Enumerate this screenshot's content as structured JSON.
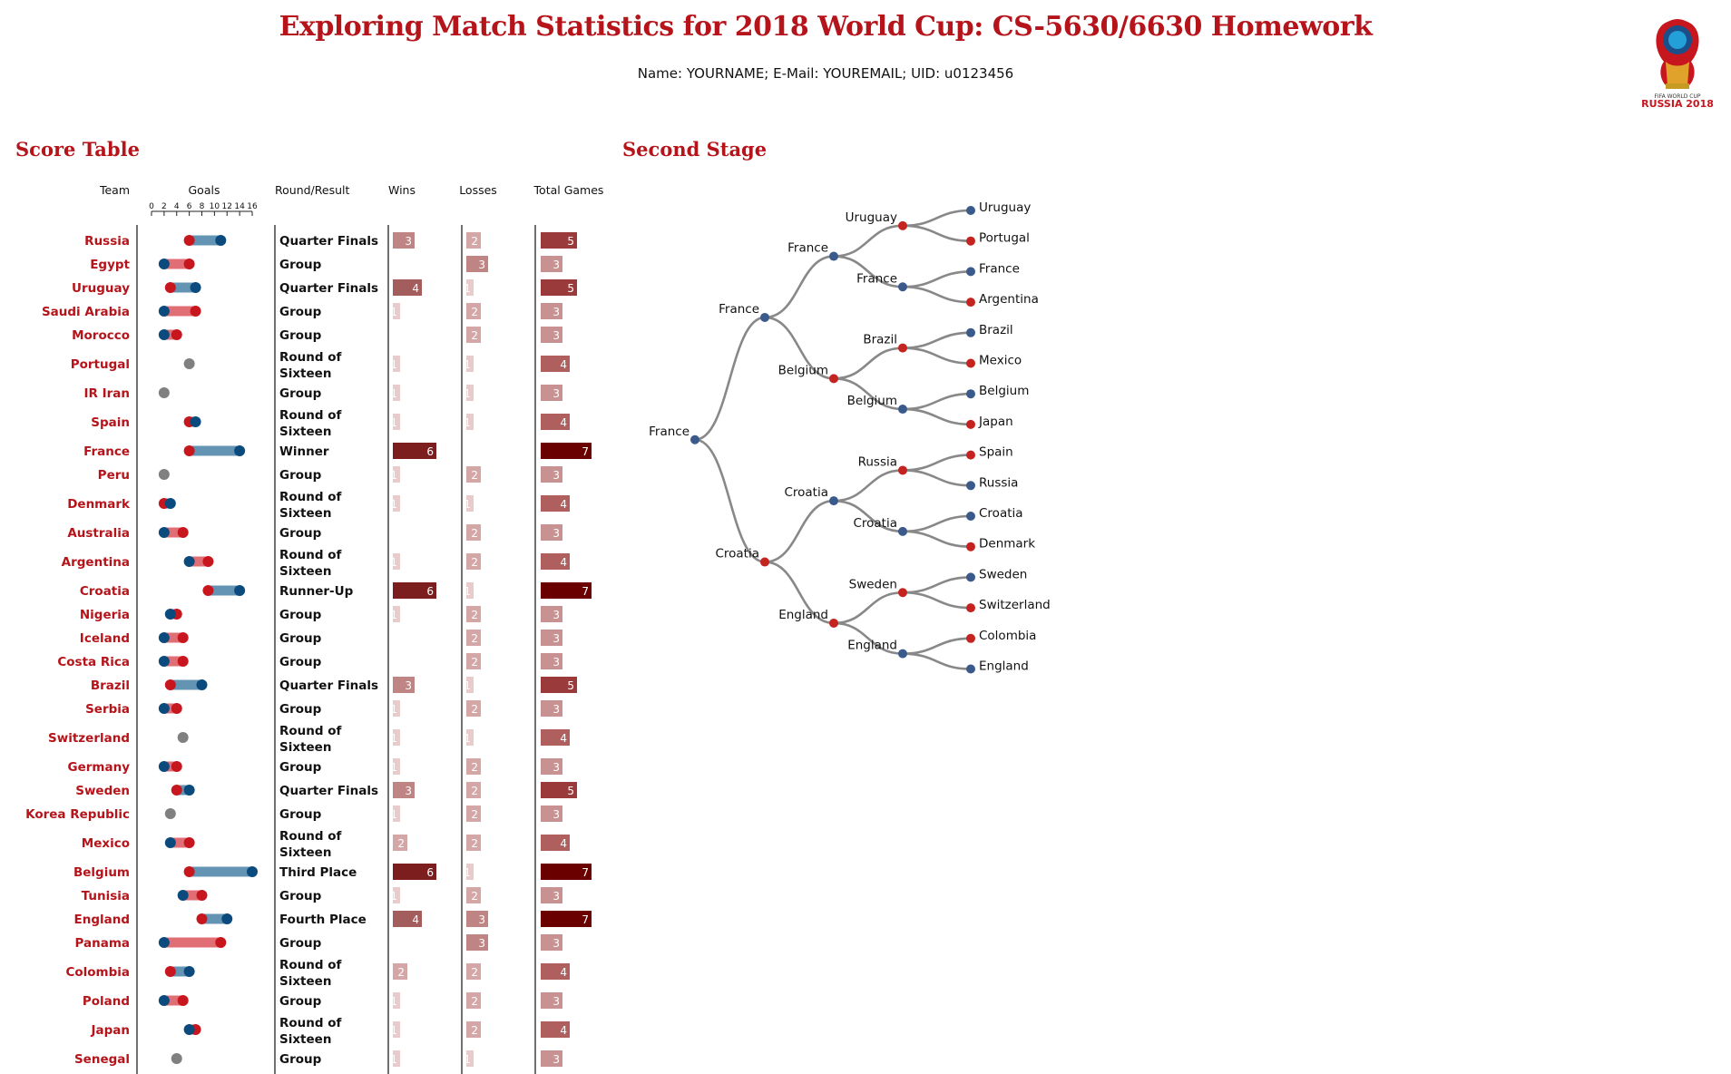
{
  "header": {
    "title": "Exploring Match Statistics for 2018 World Cup: CS-5630/6630 Homework",
    "subtitle": "Name: YOURNAME; E-Mail: YOUREMAIL; UID: u0123456",
    "logo_text_small": "FIFA WORLD CUP",
    "logo_text": "RUSSIA 2018"
  },
  "score_table": {
    "heading": "Score Table",
    "columns": [
      "Team",
      "Goals",
      "Round/Result",
      "Wins",
      "Losses",
      "Total Games"
    ],
    "goals_axis_ticks": [
      "0",
      "2",
      "4",
      "6",
      "8",
      "10",
      "12",
      "14",
      "16"
    ],
    "rows": [
      {
        "team": "Russia",
        "made": 11,
        "conceded": 6,
        "result": "Quarter Finals",
        "wins": 3,
        "losses": 2,
        "total": 5
      },
      {
        "team": "Egypt",
        "made": 2,
        "conceded": 6,
        "result": "Group",
        "wins": "",
        "losses": 3,
        "total": 3
      },
      {
        "team": "Uruguay",
        "made": 7,
        "conceded": 3,
        "result": "Quarter Finals",
        "wins": 4,
        "losses": 1,
        "total": 5
      },
      {
        "team": "Saudi Arabia",
        "made": 2,
        "conceded": 7,
        "result": "Group",
        "wins": 1,
        "losses": 2,
        "total": 3
      },
      {
        "team": "Morocco",
        "made": 2,
        "conceded": 4,
        "result": "Group",
        "wins": "",
        "losses": 2,
        "total": 3
      },
      {
        "team": "Portugal",
        "made": 6,
        "conceded": 6,
        "result": "Round of Sixteen",
        "wins": 1,
        "losses": 1,
        "total": 4
      },
      {
        "team": "IR Iran",
        "made": 2,
        "conceded": 2,
        "result": "Group",
        "wins": 1,
        "losses": 1,
        "total": 3
      },
      {
        "team": "Spain",
        "made": 7,
        "conceded": 6,
        "result": "Round of Sixteen",
        "wins": 1,
        "losses": 1,
        "total": 4
      },
      {
        "team": "France",
        "made": 14,
        "conceded": 6,
        "result": "Winner",
        "wins": 6,
        "losses": "",
        "total": 7
      },
      {
        "team": "Peru",
        "made": 2,
        "conceded": 2,
        "result": "Group",
        "wins": 1,
        "losses": 2,
        "total": 3
      },
      {
        "team": "Denmark",
        "made": 3,
        "conceded": 2,
        "result": "Round of Sixteen",
        "wins": 1,
        "losses": 1,
        "total": 4
      },
      {
        "team": "Australia",
        "made": 2,
        "conceded": 5,
        "result": "Group",
        "wins": "",
        "losses": 2,
        "total": 3
      },
      {
        "team": "Argentina",
        "made": 6,
        "conceded": 9,
        "result": "Round of Sixteen",
        "wins": 1,
        "losses": 2,
        "total": 4
      },
      {
        "team": "Croatia",
        "made": 14,
        "conceded": 9,
        "result": "Runner-Up",
        "wins": 6,
        "losses": 1,
        "total": 7
      },
      {
        "team": "Nigeria",
        "made": 3,
        "conceded": 4,
        "result": "Group",
        "wins": 1,
        "losses": 2,
        "total": 3
      },
      {
        "team": "Iceland",
        "made": 2,
        "conceded": 5,
        "result": "Group",
        "wins": "",
        "losses": 2,
        "total": 3
      },
      {
        "team": "Costa Rica",
        "made": 2,
        "conceded": 5,
        "result": "Group",
        "wins": "",
        "losses": 2,
        "total": 3
      },
      {
        "team": "Brazil",
        "made": 8,
        "conceded": 3,
        "result": "Quarter Finals",
        "wins": 3,
        "losses": 1,
        "total": 5
      },
      {
        "team": "Serbia",
        "made": 2,
        "conceded": 4,
        "result": "Group",
        "wins": 1,
        "losses": 2,
        "total": 3
      },
      {
        "team": "Switzerland",
        "made": 5,
        "conceded": 5,
        "result": "Round of Sixteen",
        "wins": 1,
        "losses": 1,
        "total": 4
      },
      {
        "team": "Germany",
        "made": 2,
        "conceded": 4,
        "result": "Group",
        "wins": 1,
        "losses": 2,
        "total": 3
      },
      {
        "team": "Sweden",
        "made": 6,
        "conceded": 4,
        "result": "Quarter Finals",
        "wins": 3,
        "losses": 2,
        "total": 5
      },
      {
        "team": "Korea Republic",
        "made": 3,
        "conceded": 3,
        "result": "Group",
        "wins": 1,
        "losses": 2,
        "total": 3
      },
      {
        "team": "Mexico",
        "made": 3,
        "conceded": 6,
        "result": "Round of Sixteen",
        "wins": 2,
        "losses": 2,
        "total": 4
      },
      {
        "team": "Belgium",
        "made": 16,
        "conceded": 6,
        "result": "Third Place",
        "wins": 6,
        "losses": 1,
        "total": 7
      },
      {
        "team": "Tunisia",
        "made": 5,
        "conceded": 8,
        "result": "Group",
        "wins": 1,
        "losses": 2,
        "total": 3
      },
      {
        "team": "England",
        "made": 12,
        "conceded": 8,
        "result": "Fourth Place",
        "wins": 4,
        "losses": 3,
        "total": 7
      },
      {
        "team": "Panama",
        "made": 2,
        "conceded": 11,
        "result": "Group",
        "wins": "",
        "losses": 3,
        "total": 3
      },
      {
        "team": "Colombia",
        "made": 6,
        "conceded": 3,
        "result": "Round of Sixteen",
        "wins": 2,
        "losses": 2,
        "total": 4
      },
      {
        "team": "Poland",
        "made": 2,
        "conceded": 5,
        "result": "Group",
        "wins": 1,
        "losses": 2,
        "total": 3
      },
      {
        "team": "Japan",
        "made": 6,
        "conceded": 7,
        "result": "Round of Sixteen",
        "wins": 1,
        "losses": 2,
        "total": 4
      },
      {
        "team": "Senegal",
        "made": 4,
        "conceded": 4,
        "result": "Group",
        "wins": 1,
        "losses": 1,
        "total": 3
      }
    ]
  },
  "second_stage": {
    "heading": "Second Stage",
    "tree": {
      "name": "France",
      "side": "win",
      "children": [
        {
          "name": "France",
          "side": "win",
          "children": [
            {
              "name": "France",
              "side": "win",
              "children": [
                {
                  "name": "Uruguay",
                  "side": "lose",
                  "children": [
                    {
                      "name": "Uruguay",
                      "side": "win"
                    },
                    {
                      "name": "Portugal",
                      "side": "lose"
                    }
                  ]
                },
                {
                  "name": "France",
                  "side": "win",
                  "children": [
                    {
                      "name": "France",
                      "side": "win"
                    },
                    {
                      "name": "Argentina",
                      "side": "lose"
                    }
                  ]
                }
              ]
            },
            {
              "name": "Belgium",
              "side": "lose",
              "children": [
                {
                  "name": "Brazil",
                  "side": "lose",
                  "children": [
                    {
                      "name": "Brazil",
                      "side": "win"
                    },
                    {
                      "name": "Mexico",
                      "side": "lose"
                    }
                  ]
                },
                {
                  "name": "Belgium",
                  "side": "win",
                  "children": [
                    {
                      "name": "Belgium",
                      "side": "win"
                    },
                    {
                      "name": "Japan",
                      "side": "lose"
                    }
                  ]
                }
              ]
            }
          ]
        },
        {
          "name": "Croatia",
          "side": "lose",
          "children": [
            {
              "name": "Croatia",
              "side": "win",
              "children": [
                {
                  "name": "Russia",
                  "side": "lose",
                  "children": [
                    {
                      "name": "Spain",
                      "side": "lose"
                    },
                    {
                      "name": "Russia",
                      "side": "win"
                    }
                  ]
                },
                {
                  "name": "Croatia",
                  "side": "win",
                  "children": [
                    {
                      "name": "Croatia",
                      "side": "win"
                    },
                    {
                      "name": "Denmark",
                      "side": "lose"
                    }
                  ]
                }
              ]
            },
            {
              "name": "England",
              "side": "lose",
              "children": [
                {
                  "name": "Sweden",
                  "side": "lose",
                  "children": [
                    {
                      "name": "Sweden",
                      "side": "win"
                    },
                    {
                      "name": "Switzerland",
                      "side": "lose"
                    }
                  ]
                },
                {
                  "name": "England",
                  "side": "win",
                  "children": [
                    {
                      "name": "Colombia",
                      "side": "lose"
                    },
                    {
                      "name": "England",
                      "side": "win"
                    }
                  ]
                }
              ]
            }
          ]
        }
      ]
    }
  },
  "colors": {
    "title": "#b5141a",
    "goals_made": "#0b4a7c",
    "goals_conceded": "#c7161e",
    "bar_made_longer": "#6494b4",
    "bar_conceded_longer": "#e06e74",
    "tie": "#808080",
    "tree_link": "#888888",
    "tree_win": "#3a5a8c",
    "tree_lose": "#c4231f"
  }
}
